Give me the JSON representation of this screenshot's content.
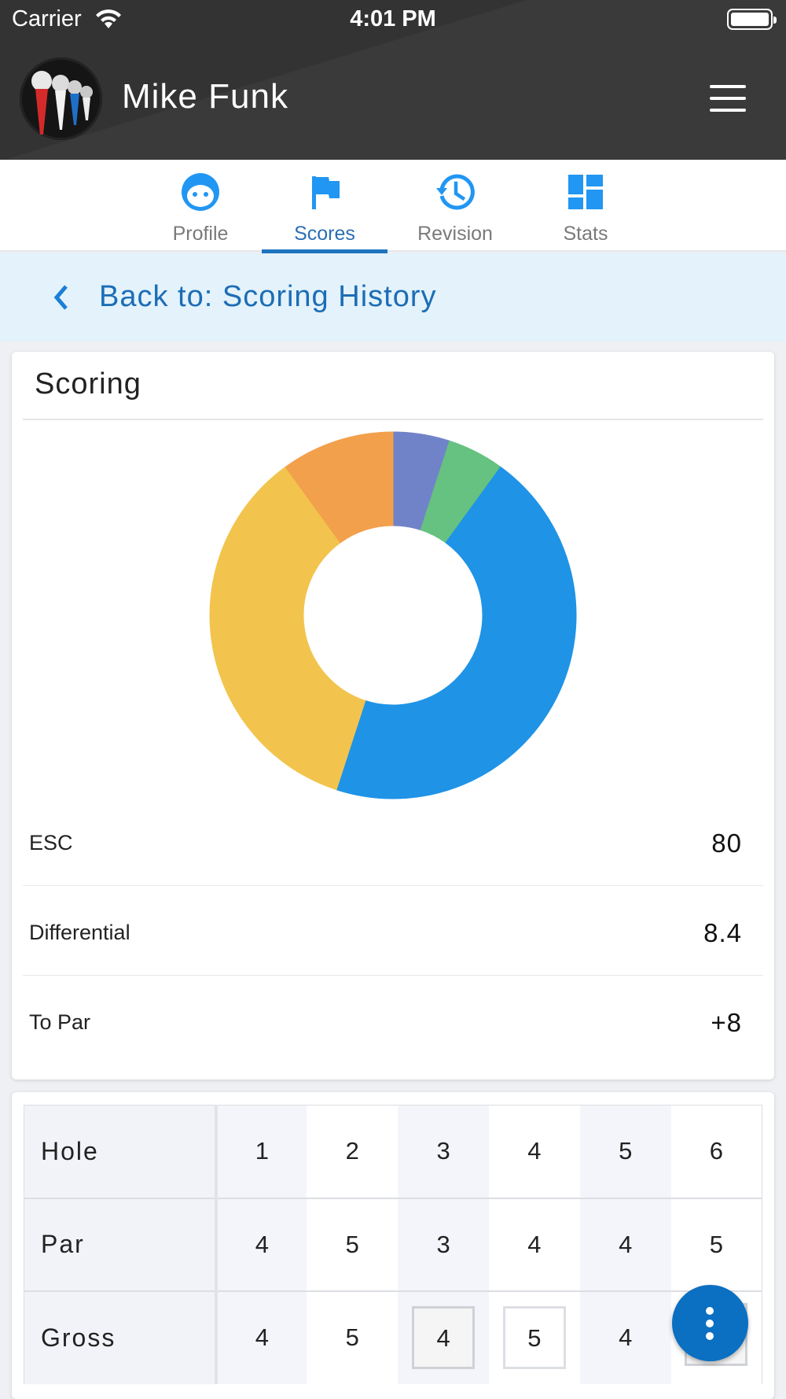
{
  "status_bar": {
    "carrier": "Carrier",
    "time": "4:01 PM"
  },
  "header": {
    "title": "Mike Funk"
  },
  "tabs": [
    {
      "label": "Profile",
      "icon": "face-icon",
      "active": false
    },
    {
      "label": "Scores",
      "icon": "flag-icon",
      "active": true
    },
    {
      "label": "Revision",
      "icon": "history-icon",
      "active": false
    },
    {
      "label": "Stats",
      "icon": "dashboard-icon",
      "active": false
    }
  ],
  "back_link": {
    "label": "Back to: Scoring History"
  },
  "scoring": {
    "title": "Scoring",
    "rows": [
      {
        "label": "ESC",
        "value": "80"
      },
      {
        "label": "Differential",
        "value": "8.4"
      },
      {
        "label": "To Par",
        "value": "+8"
      }
    ]
  },
  "chart_data": {
    "type": "pie",
    "donut": true,
    "slices": [
      {
        "value": 1,
        "color": "#7083c8"
      },
      {
        "value": 1,
        "color": "#66c280"
      },
      {
        "value": 9,
        "color": "#1f93e6"
      },
      {
        "value": 7,
        "color": "#f2c44d"
      },
      {
        "value": 2,
        "color": "#f2a04c"
      }
    ]
  },
  "scorecard": {
    "rows": [
      {
        "label": "Hole",
        "values": [
          "1",
          "2",
          "3",
          "4",
          "5",
          "6"
        ]
      },
      {
        "label": "Par",
        "values": [
          "4",
          "5",
          "3",
          "4",
          "4",
          "5"
        ]
      },
      {
        "label": "Gross",
        "values": [
          "4",
          "5",
          "4",
          "5",
          "4",
          ""
        ]
      }
    ]
  },
  "colors": {
    "accent": "#1e73be",
    "header_bg": "#333333",
    "back_bar_bg": "#e3f2fb"
  }
}
